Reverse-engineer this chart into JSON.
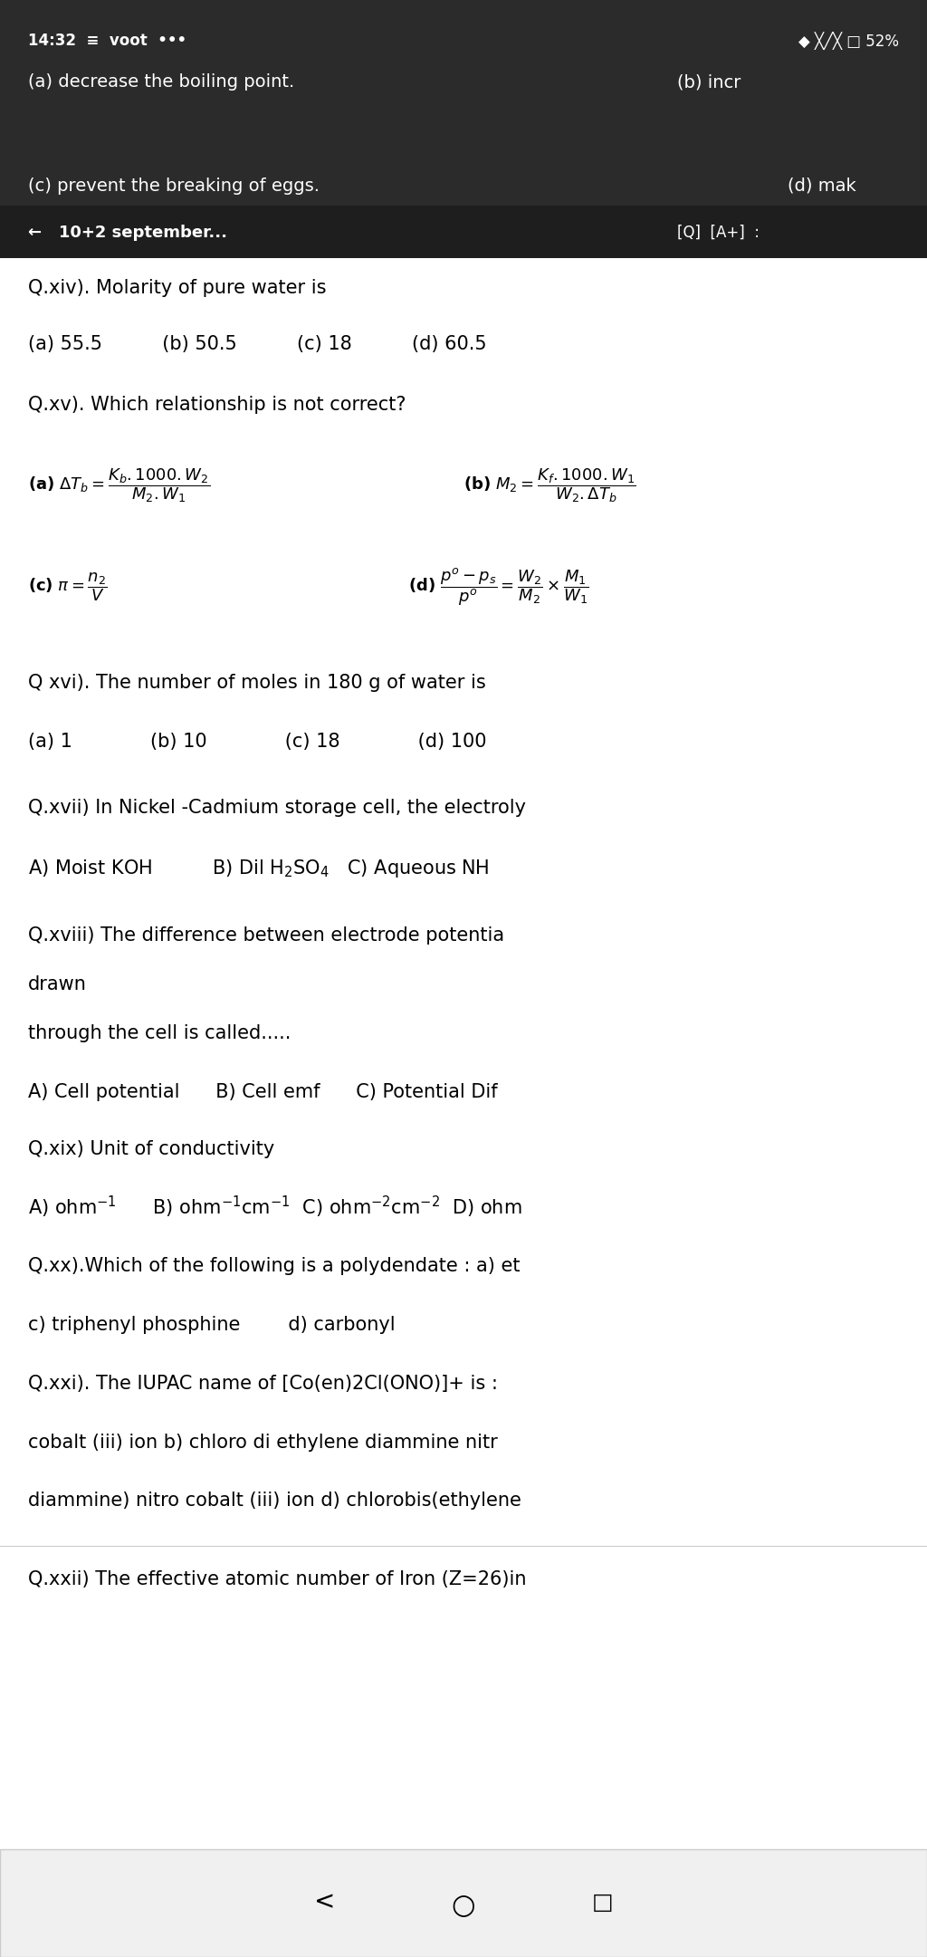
{
  "figsize": [
    10.24,
    21.61
  ],
  "dpi": 100,
  "bg_top_color": "#2b2b2b",
  "bg_white": "#ffffff",
  "status_line": "14:32  ≡  voot  •••",
  "status_right": "◆ ╳╱╳ □ 52%",
  "prev_a": "(a) decrease the boiling point.",
  "prev_b": "(b) incr",
  "prev_c": "(c) prevent the breaking of eggs.",
  "prev_d": "(d) mak",
  "nav_left": "←   10+2 september...",
  "qxiv": "Q.xiv). Molarity of pure water is",
  "qxiv_ans": "(a) 55.5          (b) 50.5          (c) 18          (d) 60.5",
  "qxv": "Q.xv). Which relationship is not correct?",
  "qxvi": "Q xvi). The number of moles in 180 g of water is",
  "qxvi_ans": "(a) 1             (b) 10             (c) 18             (d) 100",
  "qxvii": "Q.xvii) In Nickel -Cadmium storage cell, the electroly",
  "qxvii_ans": "A) Moist KOH          B) Dil H2SO4   C) Aqueous NH",
  "qxviii_1": "Q.xviii) The difference between electrode potentia",
  "qxviii_2": "drawn",
  "qxviii_3": "through the cell is called.....",
  "qxviii_ans": "A) Cell potential      B) Cell emf      C) Potential Dif",
  "qxix": "Q.xix) Unit of conductivity",
  "qxix_ans": "A) ohm-1      B) ohm-1cm-1  C) ohm-2cm-2  D) ohm",
  "qxx": "Q.xx).Which of the following is a polydendate : a) et",
  "qxx_ans": "c) triphenyl phosphine        d) carbonyl",
  "qxxi": "Q.xxi). The IUPAC name of [Co(en)2Cl(ONO)]+ is :",
  "qxxi_1": "cobalt (iii) ion b) chloro di ethylene diammine nitr",
  "qxxi_2": "diammine) nitro cobalt (iii) ion d) chlorobis(ethylene",
  "qxxii": "Q.xxii) The effective atomic number of Iron (Z=26)in",
  "font_size": 15,
  "formula_size": 13,
  "text_color": "#000000",
  "white_color": "#ffffff",
  "gray_line": "#cccccc"
}
